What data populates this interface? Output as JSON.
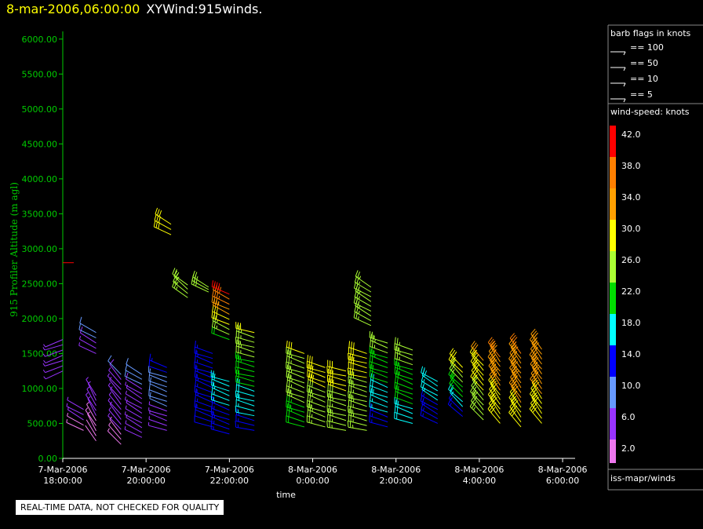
{
  "header": {
    "timestamp": "8-mar-2006,06:00:00",
    "title": "XYWind:915winds."
  },
  "notice": "REAL-TIME DATA, NOT CHECKED FOR QUALITY",
  "legend": {
    "barb_title": "barb flags in knots",
    "barb_items": [
      "== 100",
      "== 50",
      "== 10",
      "== 5"
    ],
    "speed_title": "wind-speed: knots",
    "speed_levels": [
      "42.0",
      "38.0",
      "34.0",
      "30.0",
      "26.0",
      "22.0",
      "18.0",
      "14.0",
      "10.0",
      "6.0",
      "2.0"
    ],
    "speed_colors": [
      "#ff0000",
      "#ff7f00",
      "#ff9f00",
      "#ffff00",
      "#aaff33",
      "#00dd00",
      "#00ffff",
      "#0000ff",
      "#6699ff",
      "#9933ff",
      "#ee77ee"
    ],
    "source": "iss-mapr/winds"
  },
  "chart_data": {
    "type": "scatter",
    "ylabel": "915 Profiler Altitude (m agl)",
    "xlabel": "time",
    "ylim": [
      0,
      6200
    ],
    "yticks": [
      "0.00",
      "500.00",
      "1000.00",
      "1500.00",
      "2000.00",
      "2500.00",
      "3000.00",
      "3500.00",
      "4000.00",
      "4500.00",
      "5000.00",
      "5500.00",
      "6000.00"
    ],
    "xticks": [
      {
        "t": 18,
        "l1": "7-Mar-2006",
        "l2": "18:00:00"
      },
      {
        "t": 20,
        "l1": "7-Mar-2006",
        "l2": "20:00:00"
      },
      {
        "t": 22,
        "l1": "7-Mar-2006",
        "l2": "22:00:00"
      },
      {
        "t": 24,
        "l1": "8-Mar-2006",
        "l2": "0:00:00"
      },
      {
        "t": 26,
        "l1": "8-Mar-2006",
        "l2": "2:00:00"
      },
      {
        "t": 28,
        "l1": "8-Mar-2006",
        "l2": "4:00:00"
      },
      {
        "t": 30,
        "l1": "8-Mar-2006",
        "l2": "6:00:00"
      }
    ],
    "xlim": [
      18,
      30.3
    ],
    "profiles": [
      {
        "t": 18.0,
        "hmin": 1250,
        "hmax": 1700,
        "dir": 250,
        "smin": 4,
        "smax": 7
      },
      {
        "t": 18.5,
        "hmin": 400,
        "hmax": 700,
        "dir": 300,
        "smin": 3,
        "smax": 6
      },
      {
        "t": 18.8,
        "hmin": 250,
        "hmax": 900,
        "dir": 330,
        "smin": 2,
        "smax": 6
      },
      {
        "t": 18.8,
        "hmin": 1500,
        "hmax": 1800,
        "dir": 300,
        "smin": 5,
        "smax": 10
      },
      {
        "t": 19.4,
        "hmin": 200,
        "hmax": 1200,
        "dir": 320,
        "smin": 3,
        "smax": 8
      },
      {
        "t": 19.9,
        "hmin": 300,
        "hmax": 1200,
        "dir": 300,
        "smin": 4,
        "smax": 9
      },
      {
        "t": 20.5,
        "hmin": 400,
        "hmax": 1300,
        "dir": 290,
        "smin": 5,
        "smax": 13
      },
      {
        "t": 20.6,
        "hmin": 3200,
        "hmax": 3350,
        "dir": 300,
        "smin": 28,
        "smax": 29
      },
      {
        "t": 21.0,
        "hmin": 2300,
        "hmax": 2480,
        "dir": 310,
        "smin": 24,
        "smax": 27
      },
      {
        "t": 21.5,
        "hmin": 2380,
        "hmax": 2450,
        "dir": 300,
        "smin": 25,
        "smax": 26
      },
      {
        "t": 21.6,
        "hmin": 450,
        "hmax": 1500,
        "dir": 290,
        "smin": 12,
        "smax": 15
      },
      {
        "t": 22.0,
        "hmin": 350,
        "hmax": 1100,
        "dir": 290,
        "smin": 14,
        "smax": 18
      },
      {
        "t": 22.0,
        "hmin": 1700,
        "hmax": 2350,
        "dir": 295,
        "smin": 22,
        "smax": 40
      },
      {
        "t": 22.6,
        "hmin": 400,
        "hmax": 1800,
        "dir": 285,
        "smin": 14,
        "smax": 28
      },
      {
        "t": 23.8,
        "hmin": 450,
        "hmax": 1500,
        "dir": 290,
        "smin": 22,
        "smax": 28
      },
      {
        "t": 24.3,
        "hmin": 450,
        "hmax": 1300,
        "dir": 290,
        "smin": 24,
        "smax": 30
      },
      {
        "t": 24.8,
        "hmin": 400,
        "hmax": 1250,
        "dir": 285,
        "smin": 25,
        "smax": 30
      },
      {
        "t": 25.3,
        "hmin": 400,
        "hmax": 1500,
        "dir": 285,
        "smin": 24,
        "smax": 30
      },
      {
        "t": 25.4,
        "hmin": 1900,
        "hmax": 2450,
        "dir": 300,
        "smin": 24,
        "smax": 26
      },
      {
        "t": 25.8,
        "hmin": 450,
        "hmax": 1650,
        "dir": 290,
        "smin": 14,
        "smax": 26
      },
      {
        "t": 26.4,
        "hmin": 500,
        "hmax": 1550,
        "dir": 290,
        "smin": 18,
        "smax": 26
      },
      {
        "t": 27.0,
        "hmin": 500,
        "hmax": 1100,
        "dir": 300,
        "smin": 14,
        "smax": 18
      },
      {
        "t": 27.6,
        "hmin": 600,
        "hmax": 1300,
        "dir": 315,
        "smin": 14,
        "smax": 30
      },
      {
        "t": 28.1,
        "hmin": 550,
        "hmax": 1400,
        "dir": 320,
        "smin": 24,
        "smax": 32
      },
      {
        "t": 28.5,
        "hmin": 500,
        "hmax": 1450,
        "dir": 325,
        "smin": 28,
        "smax": 36
      },
      {
        "t": 29.0,
        "hmin": 450,
        "hmax": 1500,
        "dir": 325,
        "smin": 30,
        "smax": 36
      },
      {
        "t": 29.5,
        "hmin": 500,
        "hmax": 1560,
        "dir": 325,
        "smin": 30,
        "smax": 35
      }
    ],
    "isolated": [
      {
        "t": 18.0,
        "h": 2800,
        "dir": 270,
        "s": 40
      }
    ]
  }
}
